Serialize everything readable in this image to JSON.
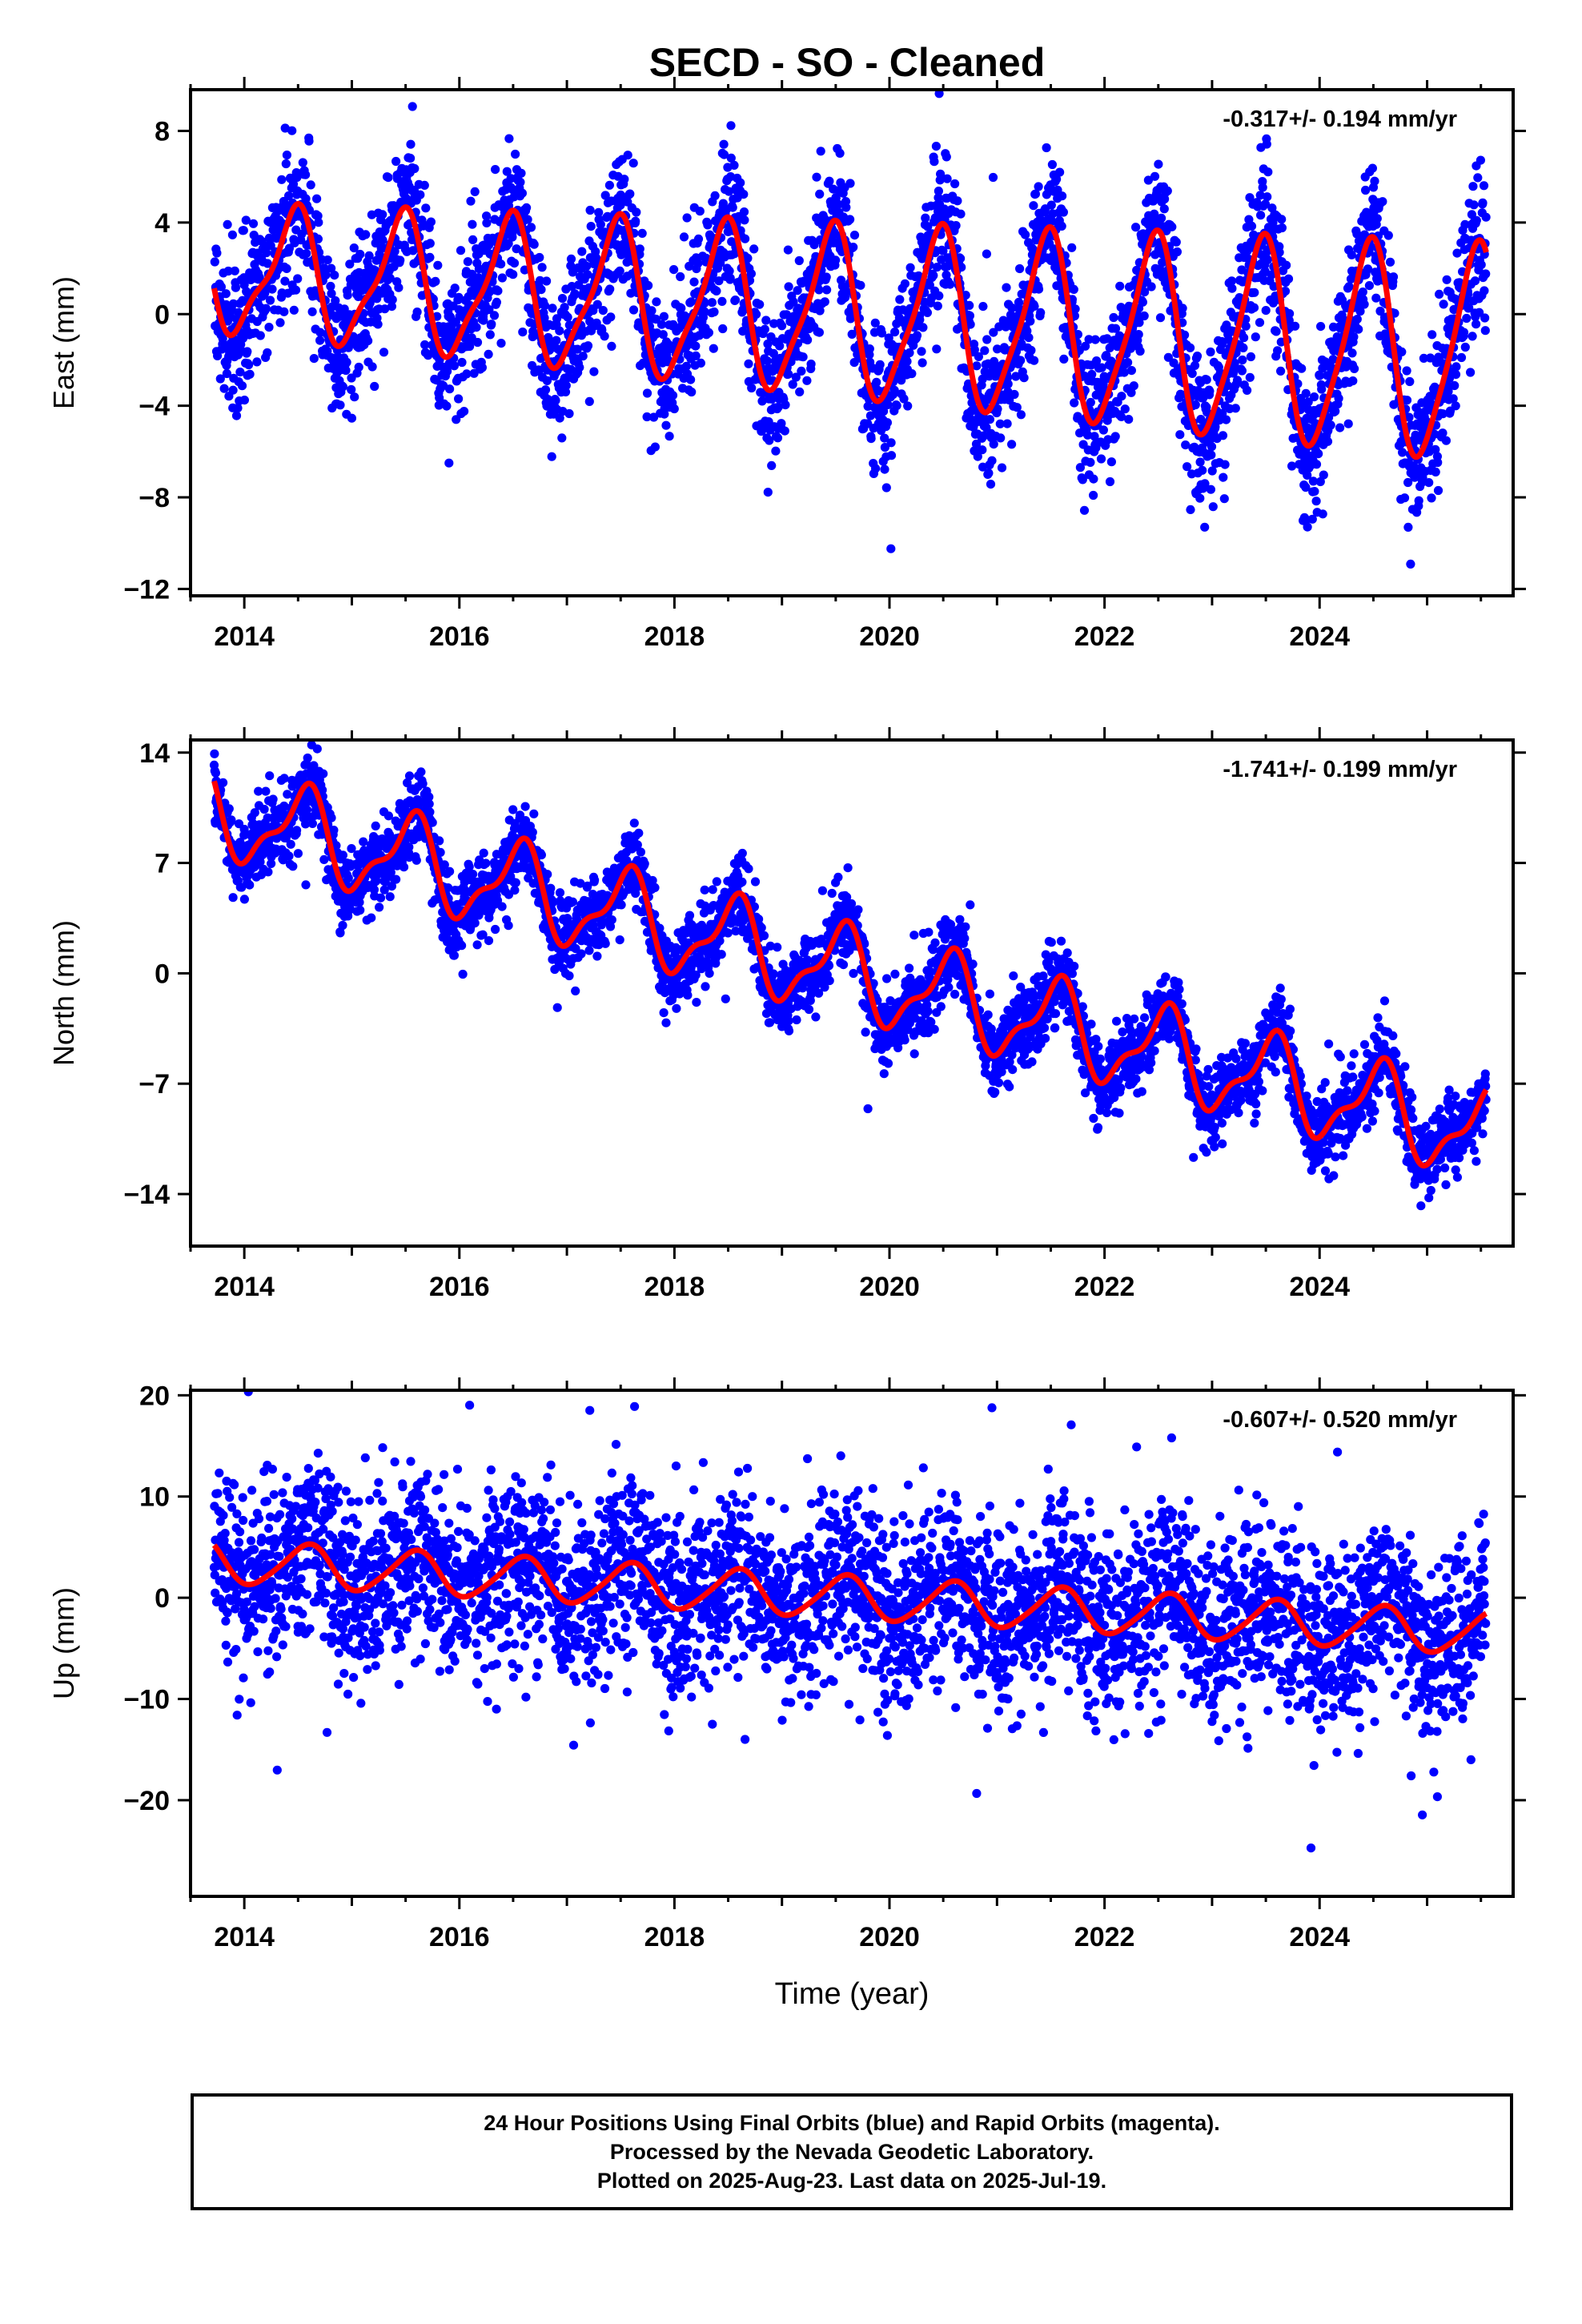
{
  "figure": {
    "title": "SECD  - SO - Cleaned",
    "footer_lines": [
      "24 Hour Positions Using Final Orbits (blue) and Rapid Orbits (magenta).",
      "Processed by the Nevada Geodetic Laboratory.",
      "Plotted on 2025-Aug-23. Last data on 2025-Jul-19."
    ]
  },
  "colors": {
    "points": "#0000ff",
    "model": "#ff0000",
    "frame": "#000000"
  },
  "chart_data": [
    {
      "type": "scatter",
      "ylabel": "East (mm)",
      "xlabel": "",
      "rate_text": "-0.317+/- 0.194 mm/yr",
      "xlim": [
        2013.5,
        2025.8
      ],
      "ylim": [
        -12.3,
        9.8
      ],
      "yticks": [
        8,
        4,
        0,
        -4,
        -8,
        -12
      ],
      "ytick_labels": [
        "8",
        "4",
        "0",
        "−4",
        "−8",
        "−12"
      ],
      "xticks": [
        2014,
        2016,
        2018,
        2020,
        2022,
        2024
      ],
      "data_start": 2013.72,
      "data_end": 2025.55,
      "model": {
        "offset": 0.0,
        "rate": -0.317,
        "annual_amp": 3.6,
        "peak_phase": 0.45,
        "semi_amp": 0.8,
        "amp_growth": 0.05
      },
      "scatter_sd": 1.6,
      "series": [
        {
          "name": "Final Orbits",
          "color": "#0000ff",
          "points": "daily positions"
        },
        {
          "name": "Model",
          "color": "#ff0000"
        }
      ]
    },
    {
      "type": "scatter",
      "ylabel": "North (mm)",
      "xlabel": "",
      "rate_text": "-1.741+/- 0.199 mm/yr",
      "xlim": [
        2013.5,
        2025.8
      ],
      "ylim": [
        -17.3,
        14.8
      ],
      "yticks": [
        14,
        7,
        0,
        -7,
        -14
      ],
      "ytick_labels": [
        "14",
        "7",
        "0",
        "−7",
        "−14"
      ],
      "xticks": [
        2014,
        2016,
        2018,
        2020,
        2022,
        2024
      ],
      "data_start": 2013.72,
      "data_end": 2025.55,
      "model": {
        "offset": 0.0,
        "rate": -1.741,
        "annual_amp": 2.6,
        "peak_phase": 0.55,
        "semi_amp": 1.0,
        "amp_growth": 0.0
      },
      "scatter_sd": 1.2,
      "series": [
        {
          "name": "Final Orbits",
          "color": "#0000ff",
          "points": "daily positions"
        },
        {
          "name": "Model",
          "color": "#ff0000"
        }
      ]
    },
    {
      "type": "scatter",
      "ylabel": "Up (mm)",
      "xlabel": "Time (year)",
      "rate_text": "-0.607+/- 0.520 mm/yr",
      "xlim": [
        2013.5,
        2025.8
      ],
      "ylim": [
        -29.5,
        20.5
      ],
      "yticks": [
        20,
        10,
        0,
        -10,
        -20
      ],
      "ytick_labels": [
        "20",
        "10",
        "0",
        "−10",
        "−20"
      ],
      "xticks": [
        2014,
        2016,
        2018,
        2020,
        2022,
        2024
      ],
      "data_start": 2013.72,
      "data_end": 2025.55,
      "model": {
        "offset": 0.0,
        "rate": -0.607,
        "annual_amp": 2.1,
        "peak_phase": 0.58,
        "semi_amp": 0.3,
        "amp_growth": 0.0
      },
      "scatter_sd": 4.5,
      "series": [
        {
          "name": "Final Orbits",
          "color": "#0000ff",
          "points": "daily positions"
        },
        {
          "name": "Model",
          "color": "#ff0000"
        }
      ]
    }
  ]
}
